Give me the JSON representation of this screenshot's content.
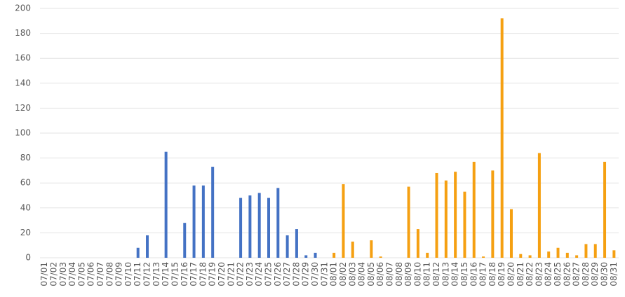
{
  "chart_data": {
    "type": "bar",
    "categories": [
      "07/01",
      "07/02",
      "07/03",
      "07/04",
      "07/05",
      "07/06",
      "07/07",
      "07/08",
      "07/09",
      "07/10",
      "07/11",
      "07/12",
      "07/13",
      "07/14",
      "07/15",
      "07/16",
      "07/17",
      "07/18",
      "07/19",
      "07/20",
      "07/21",
      "07/22",
      "07/23",
      "07/24",
      "07/25",
      "07/26",
      "07/27",
      "07/28",
      "07/29",
      "07/30",
      "07/31",
      "08/01",
      "08/02",
      "08/03",
      "08/04",
      "08/05",
      "08/06",
      "08/07",
      "08/08",
      "08/09",
      "08/10",
      "08/11",
      "08/12",
      "08/13",
      "08/14",
      "08/15",
      "08/16",
      "08/17",
      "08/18",
      "08/19",
      "08/20",
      "08/21",
      "08/22",
      "08/23",
      "08/24",
      "08/25",
      "08/26",
      "08/27",
      "08/28",
      "08/29",
      "08/30",
      "08/31"
    ],
    "values": [
      0,
      0,
      0,
      0,
      0,
      0,
      0,
      0,
      0,
      0,
      8,
      18,
      0,
      85,
      0,
      28,
      58,
      58,
      73,
      0,
      0,
      48,
      50,
      52,
      48,
      56,
      18,
      23,
      2,
      4,
      0,
      4,
      59,
      13,
      0,
      14,
      1,
      0,
      0,
      57,
      23,
      4,
      68,
      62,
      69,
      53,
      77,
      1,
      70,
      192,
      39,
      3,
      2,
      84,
      5,
      8,
      4,
      2,
      11,
      11,
      77,
      6
    ],
    "colors": [
      "#4472c4",
      "#4472c4",
      "#4472c4",
      "#4472c4",
      "#4472c4",
      "#4472c4",
      "#4472c4",
      "#4472c4",
      "#4472c4",
      "#4472c4",
      "#4472c4",
      "#4472c4",
      "#4472c4",
      "#4472c4",
      "#4472c4",
      "#4472c4",
      "#4472c4",
      "#4472c4",
      "#4472c4",
      "#4472c4",
      "#4472c4",
      "#4472c4",
      "#4472c4",
      "#4472c4",
      "#4472c4",
      "#4472c4",
      "#4472c4",
      "#4472c4",
      "#4472c4",
      "#4472c4",
      "#4472c4",
      "#f5a012",
      "#f5a012",
      "#f5a012",
      "#f5a012",
      "#f5a012",
      "#f5a012",
      "#f5a012",
      "#f5a012",
      "#f5a012",
      "#f5a012",
      "#f5a012",
      "#f5a012",
      "#f5a012",
      "#f5a012",
      "#f5a012",
      "#f5a012",
      "#f5a012",
      "#f5a012",
      "#f5a012",
      "#f5a012",
      "#f5a012",
      "#f5a012",
      "#f5a012",
      "#f5a012",
      "#f5a012",
      "#f5a012",
      "#f5a012",
      "#f5a012",
      "#f5a012",
      "#f5a012",
      "#f5a012"
    ],
    "ylim": [
      0,
      200
    ],
    "yticks": [
      0,
      20,
      40,
      60,
      80,
      100,
      120,
      140,
      160,
      180,
      200
    ],
    "grid": true
  }
}
